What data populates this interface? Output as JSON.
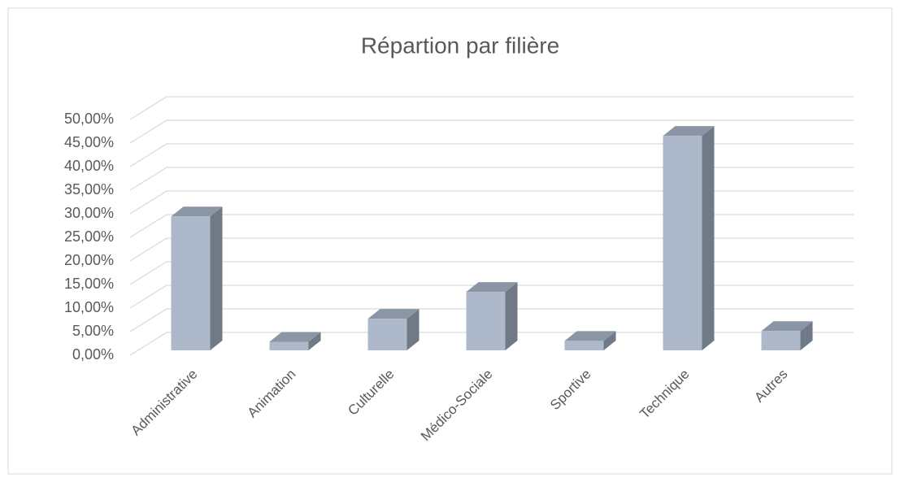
{
  "chart_data": {
    "type": "bar3d",
    "title": "Répartion par filière",
    "categories": [
      "Administrative",
      "Animation",
      "Culturelle",
      "Médico-Sociale",
      "Sportive",
      "Technique",
      "Autres"
    ],
    "values": [
      28.4,
      1.8,
      6.7,
      12.4,
      2,
      45.5,
      4.1
    ],
    "color": "#adb9ca",
    "ylim": [
      0,
      50
    ],
    "yticks": [
      {
        "value": 0,
        "label": "0,00%"
      },
      {
        "value": 5,
        "label": "5,00%"
      },
      {
        "value": 10,
        "label": "10,00%"
      },
      {
        "value": 15,
        "label": "15,00%"
      },
      {
        "value": 20,
        "label": "20,00%"
      },
      {
        "value": 25,
        "label": "25,00%"
      },
      {
        "value": 30,
        "label": "30,00%"
      },
      {
        "value": 35,
        "label": "35,00%"
      },
      {
        "value": 40,
        "label": "40,00%"
      },
      {
        "value": 45,
        "label": "45,00%"
      },
      {
        "value": 50,
        "label": "50,00%"
      }
    ],
    "grid": true
  }
}
